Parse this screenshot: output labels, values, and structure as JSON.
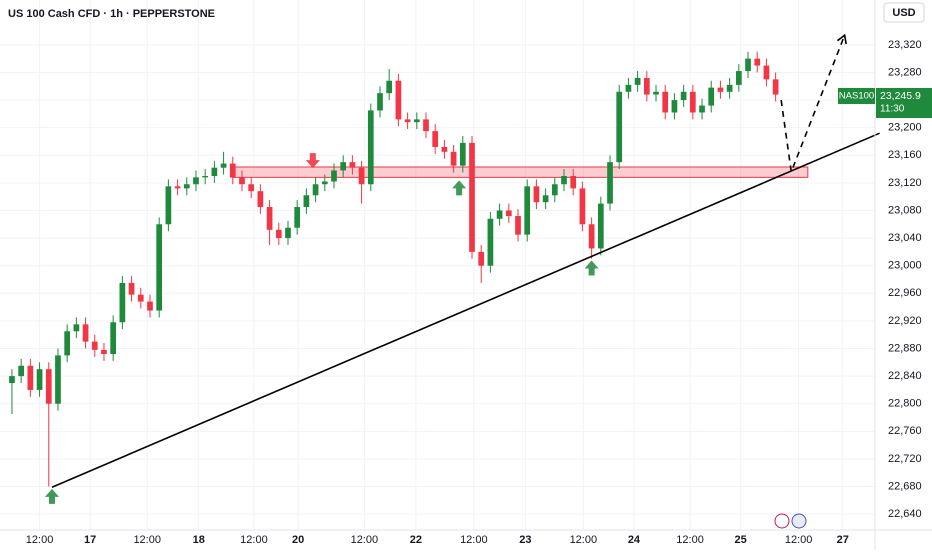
{
  "chart_data": {
    "type": "candlestick",
    "title": "US 100 Cash CFD · 1h · PEPPERSTONE",
    "currency": "USD",
    "up_color": "#1f8a3c",
    "down_color": "#f23645",
    "zone_color": "#f23645",
    "line_color": "#000000",
    "grid": true,
    "open": [
      22830,
      22840,
      22855,
      22820,
      22850,
      22800,
      22870,
      22905,
      22915,
      22890,
      22878,
      22872,
      22918,
      22975,
      22958,
      22948,
      22935,
      23060,
      23115,
      23112,
      23118,
      23128,
      23130,
      23142,
      23148,
      23128,
      23118,
      23108,
      23085,
      23052,
      23040,
      23055,
      23085,
      23102,
      23118,
      23122,
      23138,
      23150,
      23142,
      23118,
      23225,
      23250,
      23268,
      23212,
      23208,
      23212,
      23195,
      23172,
      23165,
      23145,
      23178,
      23020,
      23000,
      23068,
      23080,
      23072,
      23045,
      23115,
      23092,
      23102,
      23118,
      23130,
      23112,
      23060,
      23025,
      23090,
      23150,
      23252,
      23262,
      23272,
      23248,
      23252,
      23222,
      23240,
      23252,
      23222,
      23232,
      23258,
      23252,
      23262,
      23282,
      23300,
      23290,
      23270
    ],
    "high": [
      22850,
      22865,
      22865,
      22860,
      22860,
      22880,
      22915,
      22925,
      22925,
      22900,
      22888,
      22928,
      22985,
      22985,
      22968,
      22958,
      23070,
      23125,
      23125,
      23128,
      23138,
      23140,
      23152,
      23165,
      23158,
      23138,
      23128,
      23118,
      23095,
      23062,
      23065,
      23095,
      23112,
      23128,
      23132,
      23148,
      23160,
      23160,
      23152,
      23235,
      23260,
      23285,
      23278,
      23222,
      23222,
      23222,
      23205,
      23182,
      23175,
      23188,
      23188,
      23030,
      23078,
      23090,
      23090,
      23082,
      23125,
      23125,
      23112,
      23128,
      23140,
      23140,
      23122,
      23070,
      23100,
      23160,
      23262,
      23272,
      23282,
      23282,
      23262,
      23262,
      23250,
      23262,
      23262,
      23242,
      23268,
      23268,
      23272,
      23292,
      23310,
      23310,
      23300,
      23280
    ],
    "low": [
      22785,
      22830,
      22810,
      22810,
      22680,
      22790,
      22860,
      22895,
      22880,
      22868,
      22862,
      22862,
      22908,
      22948,
      22938,
      22925,
      22925,
      23050,
      23102,
      23102,
      23108,
      23118,
      23120,
      23132,
      23118,
      23108,
      23098,
      23075,
      23030,
      23030,
      23030,
      23045,
      23075,
      23092,
      23108,
      23112,
      23128,
      23132,
      23090,
      23108,
      23215,
      23240,
      23202,
      23198,
      23198,
      23185,
      23162,
      23155,
      23135,
      23135,
      23010,
      22975,
      22990,
      23058,
      23062,
      23035,
      23035,
      23082,
      23082,
      23092,
      23108,
      23102,
      23050,
      23010,
      23015,
      23080,
      23140,
      23242,
      23252,
      23238,
      23238,
      23212,
      23212,
      23230,
      23212,
      23212,
      23222,
      23242,
      23242,
      23252,
      23272,
      23280,
      23260,
      23238
    ],
    "close": [
      22840,
      22855,
      22820,
      22850,
      22800,
      22870,
      22905,
      22915,
      22890,
      22878,
      22872,
      22918,
      22975,
      22958,
      22948,
      22935,
      23060,
      23115,
      23112,
      23118,
      23128,
      23130,
      23142,
      23148,
      23128,
      23118,
      23108,
      23085,
      23052,
      23040,
      23055,
      23085,
      23102,
      23118,
      23122,
      23138,
      23150,
      23142,
      23118,
      23225,
      23250,
      23268,
      23212,
      23208,
      23212,
      23195,
      23172,
      23165,
      23145,
      23178,
      23020,
      23000,
      23068,
      23080,
      23072,
      23045,
      23115,
      23092,
      23102,
      23118,
      23130,
      23112,
      23060,
      23025,
      23090,
      23150,
      23252,
      23262,
      23272,
      23248,
      23252,
      23222,
      23240,
      23252,
      23222,
      23232,
      23258,
      23252,
      23262,
      23282,
      23300,
      23290,
      23270,
      23248
    ],
    "xlim": [
      -1.3,
      93.8
    ],
    "xticks": [
      {
        "value": 3,
        "label": "12:00"
      },
      {
        "value": 8.5,
        "label": "17"
      },
      {
        "value": 14.7,
        "label": "12:00"
      },
      {
        "value": 20.3,
        "label": "18"
      },
      {
        "value": 26.3,
        "label": "12:00"
      },
      {
        "value": 31.1,
        "label": "20"
      },
      {
        "value": 38.3,
        "label": "12:00"
      },
      {
        "value": 43.9,
        "label": "22"
      },
      {
        "value": 50.2,
        "label": "12:00"
      },
      {
        "value": 55.8,
        "label": "23"
      },
      {
        "value": 62.1,
        "label": "12:00"
      },
      {
        "value": 67.6,
        "label": "24"
      },
      {
        "value": 73.7,
        "label": "12:00"
      },
      {
        "value": 79.2,
        "label": "25"
      },
      {
        "value": 85.5,
        "label": "12:00"
      },
      {
        "value": 90.3,
        "label": "27"
      }
    ],
    "ylim": [
      22617,
      23385
    ],
    "yticks": [
      {
        "value": 22640,
        "label": "22,640"
      },
      {
        "value": 22680,
        "label": "22,680"
      },
      {
        "value": 22720,
        "label": "22,720"
      },
      {
        "value": 22760,
        "label": "22,760"
      },
      {
        "value": 22800,
        "label": "22,800"
      },
      {
        "value": 22840,
        "label": "22,840"
      },
      {
        "value": 22880,
        "label": "22,880"
      },
      {
        "value": 22920,
        "label": "22,920"
      },
      {
        "value": 22960,
        "label": "22,960"
      },
      {
        "value": 23000,
        "label": "23,000"
      },
      {
        "value": 23040,
        "label": "23,040"
      },
      {
        "value": 23080,
        "label": "23,080"
      },
      {
        "value": 23120,
        "label": "23,120"
      },
      {
        "value": 23160,
        "label": "23,160"
      },
      {
        "value": 23200,
        "label": "23,200"
      },
      {
        "value": 23240,
        "label": "23,240"
      },
      {
        "value": 23280,
        "label": "23,280"
      },
      {
        "value": 23320,
        "label": "23,320"
      }
    ],
    "zone": {
      "x": [
        23.9,
        86.5
      ],
      "y": [
        23128,
        23143
      ]
    },
    "trendline": {
      "x": [
        4.35,
        94.3
      ],
      "y": [
        22679,
        23192
      ]
    },
    "projection": {
      "x": [
        83.6,
        84.7,
        90.5
      ],
      "y": [
        23240,
        23136,
        23334
      ]
    },
    "markers": [
      {
        "type": "up",
        "x": 4.35,
        "y": 22665
      },
      {
        "type": "up",
        "x": 48.6,
        "y": 23112
      },
      {
        "type": "up",
        "x": 63.0,
        "y": 22996
      },
      {
        "type": "down",
        "x": 32.7,
        "y": 23153
      }
    ],
    "last_price": {
      "symbol": "NAS100",
      "value": 23245.9,
      "label": "23,245.9",
      "countdown": "11:30"
    }
  }
}
